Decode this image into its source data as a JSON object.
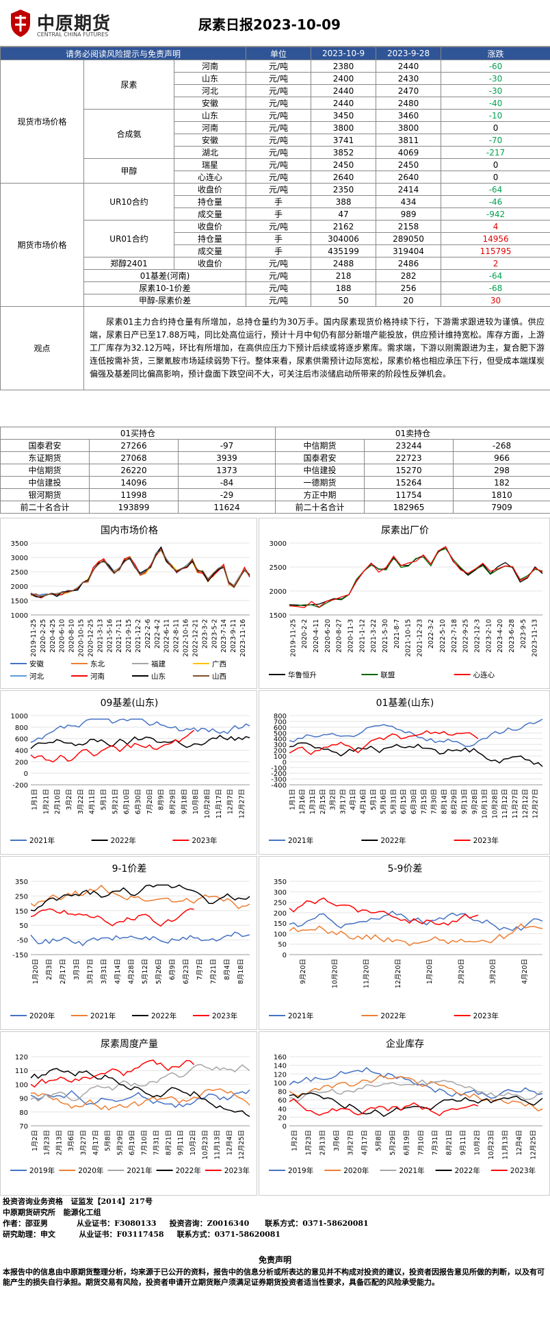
{
  "header": {
    "logo_cn": "中原期货",
    "logo_en": "CENTRAL CHINA FUTURES",
    "title": "尿素日报2023-10-09"
  },
  "table_head": [
    "请务必阅读风险提示与免责声明",
    "单位",
    "2023-10-9",
    "2023-9-28",
    "涨跌"
  ],
  "spot_label": "现货市场价格",
  "futures_label": "期货市场价格",
  "observe_label": "观点",
  "rows": [
    {
      "g2": "尿素",
      "item": "河南",
      "unit": "元/吨",
      "v1": "2380",
      "v2": "2440",
      "chg": "-60",
      "dir": "down"
    },
    {
      "item": "山东",
      "unit": "元/吨",
      "v1": "2400",
      "v2": "2430",
      "chg": "-30",
      "dir": "down"
    },
    {
      "item": "河北",
      "unit": "元/吨",
      "v1": "2440",
      "v2": "2470",
      "chg": "-30",
      "dir": "down"
    },
    {
      "item": "安徽",
      "unit": "元/吨",
      "v1": "2440",
      "v2": "2480",
      "chg": "-40",
      "dir": "down"
    },
    {
      "g2": "合成氨",
      "item": "山东",
      "unit": "元/吨",
      "v1": "3450",
      "v2": "3460",
      "chg": "-10",
      "dir": "down"
    },
    {
      "item": "河南",
      "unit": "元/吨",
      "v1": "3800",
      "v2": "3800",
      "chg": "0",
      "dir": "flat"
    },
    {
      "item": "安徽",
      "unit": "元/吨",
      "v1": "3741",
      "v2": "3811",
      "chg": "-70",
      "dir": "down"
    },
    {
      "item": "湖北",
      "unit": "元/吨",
      "v1": "3852",
      "v2": "4069",
      "chg": "-217",
      "dir": "down"
    },
    {
      "g2": "甲醇",
      "item": "瑞星",
      "unit": "元/吨",
      "v1": "2450",
      "v2": "2450",
      "chg": "0",
      "dir": "flat"
    },
    {
      "item": "心连心",
      "unit": "元/吨",
      "v1": "2640",
      "v2": "2640",
      "chg": "0",
      "dir": "flat"
    },
    {
      "g2": "UR10合约",
      "item": "收盘价",
      "unit": "元/吨",
      "v1": "2350",
      "v2": "2414",
      "chg": "-64",
      "dir": "down"
    },
    {
      "item": "持仓量",
      "unit": "手",
      "v1": "388",
      "v2": "434",
      "chg": "-46",
      "dir": "down"
    },
    {
      "item": "成交量",
      "unit": "手",
      "v1": "47",
      "v2": "989",
      "chg": "-942",
      "dir": "down"
    },
    {
      "g2": "UR01合约",
      "item": "收盘价",
      "unit": "元/吨",
      "v1": "2162",
      "v2": "2158",
      "chg": "4",
      "dir": "up"
    },
    {
      "item": "持仓量",
      "unit": "手",
      "v1": "304006",
      "v2": "289050",
      "chg": "14956",
      "dir": "up"
    },
    {
      "item": "成交量",
      "unit": "手",
      "v1": "435199",
      "v2": "319404",
      "chg": "115795",
      "dir": "up"
    },
    {
      "g2": "郑醇2401",
      "item": "收盘价",
      "unit": "元/吨",
      "v1": "2488",
      "v2": "2486",
      "chg": "2",
      "dir": "up"
    },
    {
      "item": "01基差(河南)",
      "unit": "元/吨",
      "v1": "218",
      "v2": "282",
      "chg": "-64",
      "dir": "down"
    },
    {
      "item": "尿素10-1价差",
      "unit": "元/吨",
      "v1": "188",
      "v2": "256",
      "chg": "-68",
      "dir": "down"
    },
    {
      "item": "甲醇-尿素价差",
      "unit": "元/吨",
      "v1": "50",
      "v2": "20",
      "chg": "30",
      "dir": "up"
    }
  ],
  "observation": "尿素01主力合约持仓量有所增加，总持仓量约为30万手。国内尿素现货价格持续下行，下游需求跟进较为谨慎。供应端，尿素日产已至17.88万吨，同比处高位运行，预计十月中旬仍有部分新增产能投放，供应预计维持宽松。库存方面，上游工厂库存为32.12万吨，环比有所增加，在高供应压力下预计后续或将逐步累库。需求端，下游以刚需跟进为主，复合肥下游连低按需补货，三聚氰胺市场延续弱势下行。整体来看，尿素供需预计边际宽松，尿素价格也相应承压下行，但受成本端煤炭偏强及基差同比偏高影响，预计盘面下跌空间不大，可关注后市淡储启动所带来的阶段性反弹机会。",
  "positions": {
    "long_title": "01买持仓",
    "short_title": "01卖持仓",
    "long": [
      [
        "国泰君安",
        "27266",
        "-97"
      ],
      [
        "东证期货",
        "27068",
        "3939"
      ],
      [
        "中信期货",
        "26220",
        "1373"
      ],
      [
        "中信建投",
        "14096",
        "-84"
      ],
      [
        "银河期货",
        "11998",
        "-29"
      ],
      [
        "前二十名合计",
        "193899",
        "11624"
      ]
    ],
    "short": [
      [
        "中信期货",
        "23244",
        "-268"
      ],
      [
        "国泰君安",
        "22723",
        "966"
      ],
      [
        "中信建投",
        "15270",
        "298"
      ],
      [
        "一德期货",
        "15264",
        "182"
      ],
      [
        "方正中期",
        "11754",
        "1810"
      ],
      [
        "前二十名合计",
        "182965",
        "7909"
      ]
    ]
  },
  "chart_data": [
    {
      "type": "line",
      "title": "国内市场价格",
      "yticks": [
        "3500",
        "3000",
        "2500",
        "2000",
        "1500",
        "1000"
      ],
      "xticks": [
        "2019-11-25",
        "2020-2-25",
        "2020-4-25",
        "2020-6-10",
        "2020-8-10",
        "2020-10-15",
        "2020-12-25",
        "2021-3-13",
        "2021-5-16",
        "2021-7-11",
        "2021-9-15",
        "2021-12-2",
        "2022-2-6",
        "2022-4-2",
        "2022-6-11",
        "2022-8-11",
        "2022-10-16",
        "2022-12-21",
        "2023-3-2",
        "2023-5-2",
        "2023-7-14",
        "2023-9-11",
        "2023-11-16"
      ],
      "legend": [
        [
          "安徽",
          "#4472c4"
        ],
        [
          "东北",
          "#ed7d31"
        ],
        [
          "福建",
          "#a5a5a5"
        ],
        [
          "广西",
          "#ffc000"
        ],
        [
          "河北",
          "#5b9bd5"
        ],
        [
          "河南",
          "#ff0000"
        ],
        [
          "山东",
          "#000000"
        ],
        [
          "山西",
          "#7f4f2a"
        ]
      ],
      "ylim": [
        1000,
        3500
      ],
      "series": [
        {
          "values": [
            1720,
            1680,
            1650,
            1700,
            1750,
            1700,
            1760,
            1800,
            1850,
            1900,
            2100,
            2200,
            2600,
            2800,
            2900,
            2700,
            2500,
            2600,
            2900,
            3000,
            2700,
            2400,
            2500,
            2700,
            3100,
            3300,
            2900,
            2700,
            2500,
            2600,
            2700,
            2900,
            2500,
            2500,
            2200,
            2400,
            2600,
            2700,
            2100,
            2000,
            2300,
            2600,
            2350
          ]
        }
      ]
    },
    {
      "type": "line",
      "title": "尿素出厂价",
      "yticks": [
        "3000",
        "2500",
        "2000",
        "1500"
      ],
      "xticks": [
        "2019-11-25",
        "2020-2-2",
        "2020-4-11",
        "2020-6-20",
        "2020-8-27",
        "2020-11-3",
        "2021-1-12",
        "2021-3-22",
        "2021-5-30",
        "2021-8-7",
        "2021-10-15",
        "2021-12-23",
        "2022-3-2",
        "2022-5-10",
        "2022-7-18",
        "2022-9-25",
        "2022-12-3",
        "2023-2-10",
        "2023-4-20",
        "2023-6-28",
        "2023-9-5",
        "2023-11-13"
      ],
      "legend": [
        [
          "华鲁恒升",
          "#000000"
        ],
        [
          "联盟",
          "#006400"
        ],
        [
          "心连心",
          "#ff0000"
        ]
      ],
      "ylim": [
        1500,
        3200
      ],
      "series": [
        {
          "values": [
            1750,
            1720,
            1700,
            1780,
            1720,
            1800,
            1850,
            1900,
            2000,
            2300,
            2500,
            2700,
            2550,
            2600,
            2850,
            2650,
            2700,
            2800,
            2900,
            2700,
            3000,
            3100,
            2800,
            2600,
            2450,
            2600,
            2700,
            2500,
            2600,
            2700,
            2600,
            2300,
            2400,
            2600,
            2500
          ]
        }
      ]
    },
    {
      "type": "line",
      "title": "09基差(山东)",
      "yticks": [
        "1000",
        "800",
        "600",
        "400",
        "200",
        "0",
        "-200"
      ],
      "xticks": [
        "1月1日",
        "1月21日",
        "2月10日",
        "3月2日",
        "3月22日",
        "4月11日",
        "5月1日",
        "5月21日",
        "6月10日",
        "6月30日",
        "7月20日",
        "8月9日",
        "8月29日",
        "9月18日",
        "10月8日",
        "10月28日",
        "11月17日",
        "12月7日",
        "12月27日"
      ],
      "legend": [
        [
          "2021年",
          "#4472c4"
        ],
        [
          "2022年",
          "#000000"
        ],
        [
          "2023年",
          "#ff0000"
        ]
      ],
      "ylim": [
        -200,
        1000
      ]
    },
    {
      "type": "line",
      "title": "01基差(山东)",
      "yticks": [
        "800",
        "700",
        "600",
        "500",
        "400",
        "300",
        "200",
        "100",
        "0",
        "-100",
        "-200",
        "-300",
        "-400"
      ],
      "xticks": [
        "1月1日",
        "1月16日",
        "1月31日",
        "2月15日",
        "3月2日",
        "3月17日",
        "4月1日",
        "4月16日",
        "5月1日",
        "5月16日",
        "5月31日",
        "6月15日",
        "6月30日",
        "7月15日",
        "7月30日",
        "8月14日",
        "8月29日",
        "9月13日",
        "9月28日",
        "10月13日",
        "10月28日",
        "11月12日",
        "11月27日",
        "12月12日",
        "12月27日"
      ],
      "legend": [
        [
          "2021年",
          "#4472c4"
        ],
        [
          "2022年",
          "#000000"
        ],
        [
          "2023年",
          "#ff0000"
        ]
      ],
      "ylim": [
        -400,
        800
      ]
    },
    {
      "type": "line",
      "title": "9-1价差",
      "yticks": [
        "350",
        "250",
        "150",
        "50",
        "-50",
        "-150"
      ],
      "xticks": [
        "1月20日",
        "2月3日",
        "2月17日",
        "3月3日",
        "3月17日",
        "3月31日",
        "4月14日",
        "4月28日",
        "5月12日",
        "5月26日",
        "6月9日",
        "6月23日",
        "7月7日",
        "7月21日",
        "8月4日",
        "8月18日"
      ],
      "legend": [
        [
          "2020年",
          "#4472c4"
        ],
        [
          "2021年",
          "#ed7d31"
        ],
        [
          "2022年",
          "#000000"
        ],
        [
          "2023年",
          "#ff0000"
        ]
      ],
      "ylim": [
        -150,
        350
      ]
    },
    {
      "type": "line",
      "title": "5-9价差",
      "yticks": [
        "350",
        "300",
        "250",
        "200",
        "150",
        "100",
        "50",
        "0"
      ],
      "xticks": [
        "9月20日",
        "10月20日",
        "11月20日",
        "12月20日",
        "1月20日",
        "2月20日",
        "3月20日",
        "4月20日"
      ],
      "legend": [
        [
          "2021年",
          "#4472c4"
        ],
        [
          "2022年",
          "#ed7d31"
        ],
        [
          "2023年",
          "#ff0000"
        ]
      ],
      "ylim": [
        0,
        350
      ]
    },
    {
      "type": "line",
      "title": "尿素周度产量",
      "yticks": [
        "120",
        "110",
        "100",
        "90",
        "80",
        "70"
      ],
      "xticks": [
        "1月2日",
        "1月23日",
        "2月13日",
        "3月6日",
        "3月27日",
        "4月17日",
        "5月8日",
        "5月29日",
        "6月19日",
        "7月10日",
        "7月31日",
        "8月21日",
        "9月11日",
        "10月2日",
        "10月23日",
        "11月13日",
        "12月4日",
        "12月25日"
      ],
      "legend": [
        [
          "2019年",
          "#4472c4"
        ],
        [
          "2020年",
          "#ed7d31"
        ],
        [
          "2021年",
          "#a5a5a5"
        ],
        [
          "2022年",
          "#000000"
        ],
        [
          "2023年",
          "#ff0000"
        ]
      ],
      "ylim": [
        70,
        125
      ]
    },
    {
      "type": "line",
      "title": "企业库存",
      "yticks": [
        "160",
        "140",
        "120",
        "100",
        "80",
        "60",
        "40",
        "20",
        "0"
      ],
      "xticks": [
        "1月2日",
        "1月23日",
        "2月13日",
        "3月6日",
        "3月27日",
        "4月17日",
        "5月8日",
        "5月29日",
        "6月19日",
        "7月10日",
        "7月31日",
        "8月21日",
        "9月11日",
        "10月2日",
        "10月23日",
        "11月13日",
        "12月4日",
        "12月25日"
      ],
      "legend": [
        [
          "2019年",
          "#4472c4"
        ],
        [
          "2020年",
          "#ed7d31"
        ],
        [
          "2021年",
          "#a5a5a5"
        ],
        [
          "2022年",
          "#000000"
        ],
        [
          "2023年",
          "#ff0000"
        ]
      ],
      "ylim": [
        0,
        160
      ]
    }
  ],
  "footer": {
    "lines": [
      "投资咨询业务资格   证监发【2014】217号",
      "中原期货研究所   能源化工组",
      "作者：邵亚男           从业证书：F3080133     投资咨询：Z0016340      联系方式：0371-58620081",
      "研究助理：申文         从业证书：F03117458     联系方式：0371-58620081"
    ],
    "disclaimer_title": "免责声明",
    "disclaimer": "本报告中的信息由中原期货整理分析，均来源于已公开的资料，报告中的信息分析或所表达的意见并不构成对投资的建议，投资者因报告意见所做的判断，以及有可能产生的损失自行承担。期货交易有风险，投资者申请开立期货账户须满足证券期货投资者适当性要求，具备匹配的风险承受能力。"
  }
}
